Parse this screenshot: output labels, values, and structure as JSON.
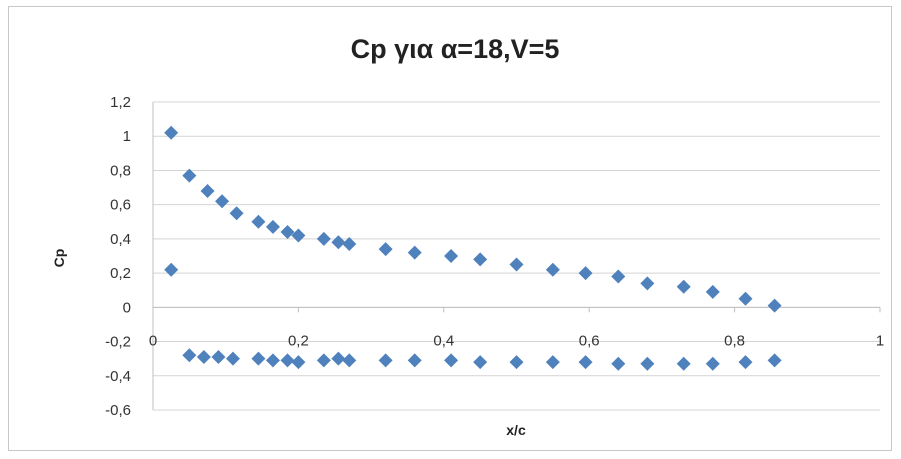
{
  "chart_data": {
    "type": "scatter",
    "title": "Cp για α=18,V=5",
    "xlabel": "x/c",
    "ylabel": "Cp",
    "xlim": [
      0,
      1
    ],
    "ylim": [
      -0.6,
      1.2
    ],
    "x_ticks": [
      "0",
      "0,2",
      "0,4",
      "0,6",
      "0,8",
      "1"
    ],
    "y_ticks": [
      "1,2",
      "1",
      "0,8",
      "0,6",
      "0,4",
      "0,2",
      "0",
      "-0,2",
      "-0,4",
      "-0,6"
    ],
    "grid": "horizontal",
    "legend": "none",
    "marker_color": "#4f81bd",
    "series": [
      {
        "points": [
          [
            0.025,
            1.02
          ],
          [
            0.05,
            0.77
          ],
          [
            0.075,
            0.68
          ],
          [
            0.095,
            0.62
          ],
          [
            0.115,
            0.55
          ],
          [
            0.145,
            0.5
          ],
          [
            0.165,
            0.47
          ],
          [
            0.185,
            0.44
          ],
          [
            0.2,
            0.42
          ],
          [
            0.235,
            0.4
          ],
          [
            0.255,
            0.38
          ],
          [
            0.27,
            0.37
          ],
          [
            0.32,
            0.34
          ],
          [
            0.36,
            0.32
          ],
          [
            0.41,
            0.3
          ],
          [
            0.45,
            0.28
          ],
          [
            0.5,
            0.25
          ],
          [
            0.55,
            0.22
          ],
          [
            0.595,
            0.2
          ],
          [
            0.64,
            0.18
          ],
          [
            0.68,
            0.14
          ],
          [
            0.73,
            0.12
          ],
          [
            0.77,
            0.09
          ],
          [
            0.815,
            0.05
          ],
          [
            0.855,
            0.01
          ],
          [
            0.025,
            0.22
          ]
        ]
      },
      {
        "points": [
          [
            0.05,
            -0.28
          ],
          [
            0.07,
            -0.29
          ],
          [
            0.09,
            -0.29
          ],
          [
            0.11,
            -0.3
          ],
          [
            0.145,
            -0.3
          ],
          [
            0.165,
            -0.31
          ],
          [
            0.185,
            -0.31
          ],
          [
            0.2,
            -0.32
          ],
          [
            0.235,
            -0.31
          ],
          [
            0.255,
            -0.3
          ],
          [
            0.27,
            -0.31
          ],
          [
            0.32,
            -0.31
          ],
          [
            0.36,
            -0.31
          ],
          [
            0.41,
            -0.31
          ],
          [
            0.45,
            -0.32
          ],
          [
            0.5,
            -0.32
          ],
          [
            0.55,
            -0.32
          ],
          [
            0.595,
            -0.32
          ],
          [
            0.64,
            -0.33
          ],
          [
            0.68,
            -0.33
          ],
          [
            0.73,
            -0.33
          ],
          [
            0.77,
            -0.33
          ],
          [
            0.815,
            -0.32
          ],
          [
            0.855,
            -0.31
          ]
        ]
      }
    ]
  }
}
